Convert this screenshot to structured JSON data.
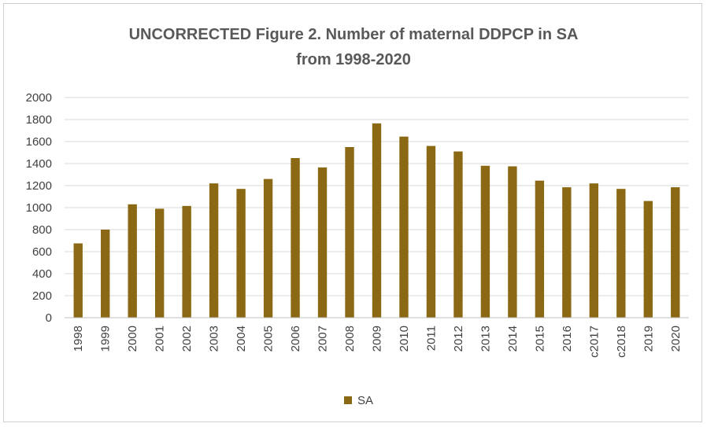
{
  "chart_data": {
    "type": "bar",
    "title": "UNCORRECTED Figure 2. Number of maternal DDPCP  in SA",
    "subtitle": "from 1998-2020",
    "categories": [
      "1998",
      "1999",
      "2000",
      "2001",
      "2002",
      "2003",
      "2004",
      "2005",
      "2006",
      "2007",
      "2008",
      "2009",
      "2010",
      "2011",
      "2012",
      "2013",
      "2014",
      "2015",
      "2016",
      "c2017",
      "c2018",
      "2019",
      "2020"
    ],
    "series": [
      {
        "name": "SA",
        "color": "#8B6914",
        "values": [
          675,
          800,
          1030,
          990,
          1015,
          1220,
          1170,
          1260,
          1450,
          1365,
          1550,
          1765,
          1645,
          1560,
          1510,
          1380,
          1375,
          1245,
          1185,
          1220,
          1170,
          1060,
          1185
        ]
      }
    ],
    "yticks": [
      "0",
      "200",
      "400",
      "600",
      "800",
      "1000",
      "1200",
      "1400",
      "1600",
      "1800",
      "2000"
    ],
    "ylim": [
      0,
      2000
    ],
    "grid": true,
    "legend_position": "bottom"
  }
}
